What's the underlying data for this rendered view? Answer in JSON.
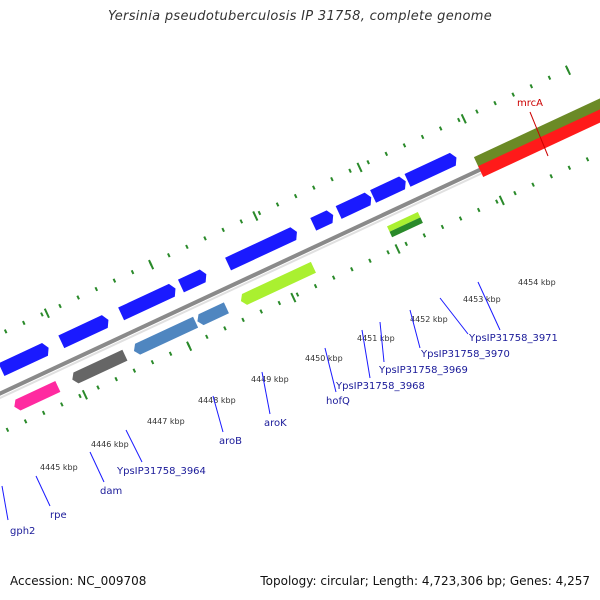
{
  "title": "Yersinia pseudotuberculosis IP 31758, complete genome",
  "footer": {
    "accession": "Accession: NC_009708",
    "summary": "Topology: circular; Length: 4,723,306 bp; Genes: 4,257"
  },
  "axis_labels": [
    "4445 kbp",
    "4446 kbp",
    "4447 kbp",
    "4448 kbp",
    "4449 kbp",
    "4450 kbp",
    "4451 kbp",
    "4452 kbp",
    "4453 kbp",
    "4454 kbp"
  ],
  "gene_labels": {
    "gph2": "gph2",
    "rpe": "rpe",
    "dam": "dam",
    "g3964": "YpsIP31758_3964",
    "aroB": "aroB",
    "aroK": "aroK",
    "hofQ": "hofQ",
    "g3968": "YpsIP31758_3968",
    "g3969": "YpsIP31758_3969",
    "g3970": "YpsIP31758_3970",
    "g3971": "YpsIP31758_3971",
    "mrcA": "mrcA"
  },
  "colors": {
    "cds_blue": "#1a1aff",
    "pink": "#ff2aa0",
    "cyan": "#22d4e0",
    "gray_dark": "#666666",
    "gray_light": "#cfcfcf",
    "steel_blue": "#4f86c0",
    "lime": "#aaf030",
    "olive": "#6b8a26",
    "red": "#ff1a1a",
    "ruler_green": "#2a8a2a"
  }
}
